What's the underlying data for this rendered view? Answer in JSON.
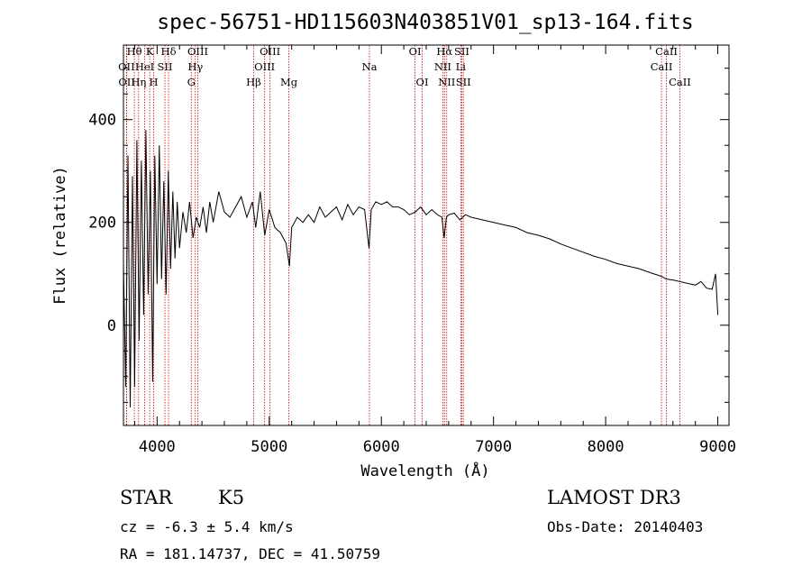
{
  "chart_data": {
    "type": "line",
    "title": "spec-56751-HD115603N403851V01_sp13-164.fits",
    "xlabel": "Wavelength (Å)",
    "ylabel": "Flux (relative)",
    "xlim": [
      3700,
      9100
    ],
    "ylim": [
      -195,
      545
    ],
    "x_ticks": [
      4000,
      5000,
      6000,
      7000,
      8000,
      9000
    ],
    "y_ticks": [
      0,
      200,
      400
    ],
    "series": [
      {
        "name": "flux",
        "x": [
          3700,
          3720,
          3740,
          3760,
          3780,
          3800,
          3820,
          3840,
          3860,
          3880,
          3900,
          3920,
          3940,
          3960,
          3980,
          4000,
          4020,
          4040,
          4060,
          4080,
          4100,
          4120,
          4140,
          4160,
          4180,
          4200,
          4230,
          4260,
          4290,
          4320,
          4350,
          4380,
          4410,
          4440,
          4470,
          4500,
          4550,
          4600,
          4650,
          4700,
          4750,
          4800,
          4850,
          4880,
          4920,
          4960,
          5000,
          5050,
          5100,
          5150,
          5180,
          5200,
          5250,
          5300,
          5350,
          5400,
          5450,
          5500,
          5550,
          5600,
          5650,
          5700,
          5750,
          5800,
          5850,
          5890,
          5910,
          5950,
          6000,
          6050,
          6100,
          6150,
          6200,
          6250,
          6300,
          6350,
          6400,
          6450,
          6500,
          6540,
          6560,
          6580,
          6600,
          6650,
          6700,
          6750,
          6800,
          6900,
          7000,
          7100,
          7200,
          7300,
          7400,
          7500,
          7600,
          7700,
          7800,
          7900,
          8000,
          8100,
          8200,
          8300,
          8400,
          8500,
          8540,
          8600,
          8660,
          8700,
          8800,
          8850,
          8900,
          8950,
          8980,
          9000
        ],
        "values": [
          120,
          -120,
          330,
          -160,
          290,
          -120,
          360,
          -30,
          320,
          20,
          380,
          60,
          300,
          -110,
          330,
          80,
          350,
          90,
          280,
          60,
          300,
          110,
          260,
          130,
          240,
          150,
          220,
          180,
          240,
          170,
          210,
          190,
          230,
          180,
          240,
          200,
          260,
          220,
          210,
          230,
          250,
          210,
          240,
          190,
          260,
          175,
          225,
          190,
          180,
          160,
          115,
          190,
          210,
          200,
          215,
          200,
          230,
          210,
          220,
          230,
          205,
          235,
          215,
          230,
          225,
          150,
          225,
          240,
          235,
          240,
          230,
          230,
          225,
          215,
          220,
          230,
          215,
          225,
          215,
          210,
          170,
          210,
          215,
          218,
          205,
          215,
          210,
          205,
          200,
          195,
          190,
          180,
          175,
          168,
          158,
          150,
          142,
          134,
          128,
          120,
          115,
          110,
          102,
          95,
          90,
          88,
          85,
          83,
          78,
          85,
          72,
          70,
          100,
          20
        ]
      }
    ],
    "spectral_lines": [
      {
        "label": "Hθ",
        "x": 3797,
        "row": 1
      },
      {
        "label": "OII",
        "x": 3727,
        "row": 2
      },
      {
        "label": "OII",
        "x": 3729,
        "row": 3
      },
      {
        "label": "HeI",
        "x": 3889,
        "row": 2
      },
      {
        "label": "K",
        "x": 3934,
        "row": 1
      },
      {
        "label": "Hη",
        "x": 3835,
        "row": 3
      },
      {
        "label": "H",
        "x": 3969,
        "row": 3
      },
      {
        "label": "SII",
        "x": 4070,
        "row": 2
      },
      {
        "label": "Hδ",
        "x": 4102,
        "row": 1
      },
      {
        "label": "OIII",
        "x": 4363,
        "row": 1
      },
      {
        "label": "Hγ",
        "x": 4341,
        "row": 2
      },
      {
        "label": "G",
        "x": 4305,
        "row": 3
      },
      {
        "label": "Hβ",
        "x": 4861,
        "row": 3
      },
      {
        "label": "OIII",
        "x": 5007,
        "row": 1
      },
      {
        "label": "OIII",
        "x": 4959,
        "row": 2
      },
      {
        "label": "Mg",
        "x": 5175,
        "row": 3
      },
      {
        "label": "Na",
        "x": 5894,
        "row": 2
      },
      {
        "label": "OI",
        "x": 6300,
        "row": 1
      },
      {
        "label": "OI",
        "x": 6364,
        "row": 3
      },
      {
        "label": "Hα",
        "x": 6563,
        "row": 1
      },
      {
        "label": "SII",
        "x": 6717,
        "row": 1
      },
      {
        "label": "NII",
        "x": 6548,
        "row": 2
      },
      {
        "label": "Li",
        "x": 6708,
        "row": 2
      },
      {
        "label": "NII",
        "x": 6583,
        "row": 3
      },
      {
        "label": "SII",
        "x": 6731,
        "row": 3
      },
      {
        "label": "CaII",
        "x": 8542,
        "row": 1
      },
      {
        "label": "CaII",
        "x": 8498,
        "row": 2
      },
      {
        "label": "CaII",
        "x": 8662,
        "row": 3
      }
    ],
    "line_marker_color": "#cc0000",
    "curve_color": "#000000"
  },
  "info": {
    "object_class": "STAR",
    "subclass": "K5",
    "survey": "LAMOST DR3",
    "redshift": "cz = -6.3 ± 5.4 km/s",
    "obs_date": "Obs-Date: 20140403",
    "coordinates": "RA = 181.14737, DEC =  41.50759"
  }
}
